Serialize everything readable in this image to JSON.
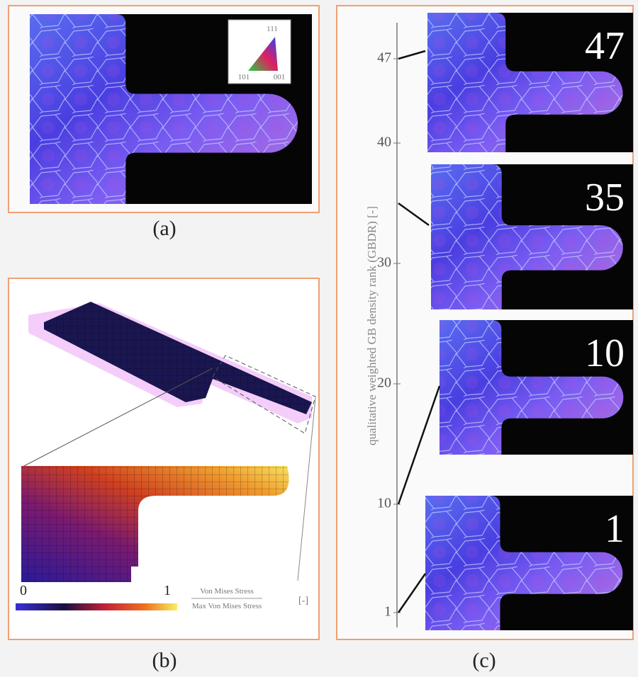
{
  "panel_a": {
    "label": "(a)",
    "legend": {
      "top": "111",
      "left": "101",
      "right": "001"
    }
  },
  "panel_b": {
    "label": "(b)",
    "colorbar": {
      "min": "0",
      "max": "1",
      "numerator": "Von Mises Stress",
      "denominator": "Max Von Mises Stress",
      "unit": "[-]"
    }
  },
  "panel_c": {
    "label": "(c)",
    "axis_label": "qualitative weighted GB density rank (GBDR) [-]",
    "ticks": [
      1,
      10,
      20,
      30,
      40,
      47
    ],
    "ranks": [
      47,
      35,
      10,
      1
    ]
  }
}
